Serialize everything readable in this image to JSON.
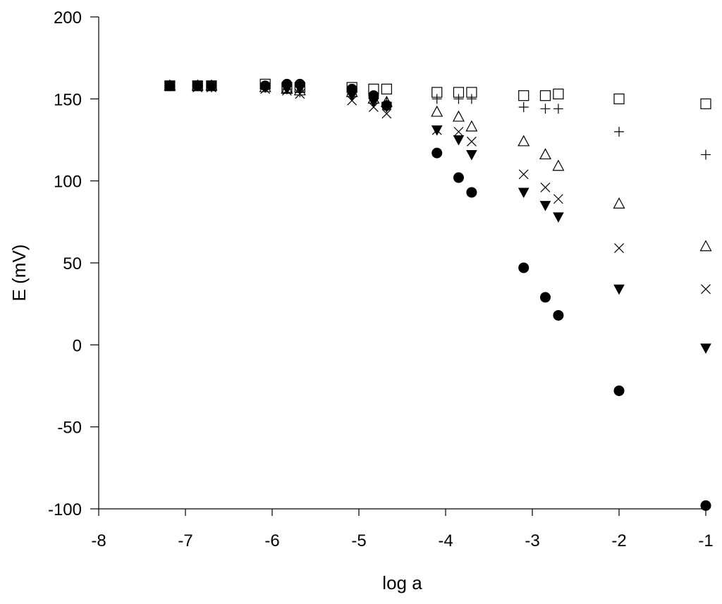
{
  "chart_data": {
    "type": "scatter",
    "xlabel": "log a",
    "ylabel": "E (mV)",
    "xlim": [
      -8,
      -1
    ],
    "ylim": [
      -100,
      200
    ],
    "xticks": [
      -8,
      -7,
      -6,
      -5,
      -4,
      -3,
      -2,
      -1
    ],
    "yticks": [
      -100,
      -50,
      0,
      50,
      100,
      150,
      200
    ],
    "xtick_labels": [
      "-8",
      "-7",
      "-6",
      "-5",
      "-4",
      "-3",
      "-2",
      "-1"
    ],
    "ytick_labels": [
      "-100",
      "-50",
      "0",
      "50",
      "100",
      "150",
      "200"
    ],
    "grid": false,
    "legend": "none",
    "series": [
      {
        "marker": "open-square",
        "color": "#000000",
        "points": [
          {
            "x": -7.18,
            "y": 158
          },
          {
            "x": -6.86,
            "y": 158
          },
          {
            "x": -6.7,
            "y": 158
          },
          {
            "x": -6.08,
            "y": 159
          },
          {
            "x": -5.83,
            "y": 157
          },
          {
            "x": -5.68,
            "y": 157
          },
          {
            "x": -5.08,
            "y": 157
          },
          {
            "x": -4.83,
            "y": 156
          },
          {
            "x": -4.68,
            "y": 156
          },
          {
            "x": -4.1,
            "y": 154
          },
          {
            "x": -3.85,
            "y": 154
          },
          {
            "x": -3.7,
            "y": 154
          },
          {
            "x": -3.1,
            "y": 152
          },
          {
            "x": -2.85,
            "y": 152
          },
          {
            "x": -2.7,
            "y": 153
          },
          {
            "x": -2.0,
            "y": 150
          },
          {
            "x": -1.0,
            "y": 147
          }
        ]
      },
      {
        "marker": "plus",
        "color": "#000000",
        "points": [
          {
            "x": -7.18,
            "y": 158
          },
          {
            "x": -6.86,
            "y": 158
          },
          {
            "x": -6.7,
            "y": 157
          },
          {
            "x": -6.08,
            "y": 157
          },
          {
            "x": -5.83,
            "y": 156
          },
          {
            "x": -5.68,
            "y": 154
          },
          {
            "x": -5.08,
            "y": 153
          },
          {
            "x": -4.83,
            "y": 150
          },
          {
            "x": -4.68,
            "y": 148
          },
          {
            "x": -4.1,
            "y": 150
          },
          {
            "x": -3.85,
            "y": 150
          },
          {
            "x": -3.7,
            "y": 150
          },
          {
            "x": -3.1,
            "y": 145
          },
          {
            "x": -2.85,
            "y": 144
          },
          {
            "x": -2.7,
            "y": 144
          },
          {
            "x": -2.0,
            "y": 130
          },
          {
            "x": -1.0,
            "y": 116
          }
        ]
      },
      {
        "marker": "open-triangle",
        "color": "#000000",
        "points": [
          {
            "x": -7.18,
            "y": 158
          },
          {
            "x": -6.86,
            "y": 158
          },
          {
            "x": -6.7,
            "y": 158
          },
          {
            "x": -6.08,
            "y": 157
          },
          {
            "x": -5.83,
            "y": 156
          },
          {
            "x": -5.68,
            "y": 155
          },
          {
            "x": -5.08,
            "y": 154
          },
          {
            "x": -4.83,
            "y": 150
          },
          {
            "x": -4.68,
            "y": 148
          },
          {
            "x": -4.1,
            "y": 142
          },
          {
            "x": -3.85,
            "y": 139
          },
          {
            "x": -3.7,
            "y": 133
          },
          {
            "x": -3.1,
            "y": 124
          },
          {
            "x": -2.85,
            "y": 116
          },
          {
            "x": -2.7,
            "y": 109
          },
          {
            "x": -2.0,
            "y": 86
          },
          {
            "x": -1.0,
            "y": 60
          }
        ]
      },
      {
        "marker": "cross",
        "color": "#000000",
        "points": [
          {
            "x": -7.18,
            "y": 158
          },
          {
            "x": -6.86,
            "y": 157
          },
          {
            "x": -6.7,
            "y": 157
          },
          {
            "x": -6.08,
            "y": 156
          },
          {
            "x": -5.83,
            "y": 155
          },
          {
            "x": -5.68,
            "y": 153
          },
          {
            "x": -5.08,
            "y": 149
          },
          {
            "x": -4.83,
            "y": 145
          },
          {
            "x": -4.68,
            "y": 141
          },
          {
            "x": -4.1,
            "y": 131
          },
          {
            "x": -3.85,
            "y": 130
          },
          {
            "x": -3.7,
            "y": 124
          },
          {
            "x": -3.1,
            "y": 104
          },
          {
            "x": -2.85,
            "y": 96
          },
          {
            "x": -2.7,
            "y": 89
          },
          {
            "x": -2.0,
            "y": 59
          },
          {
            "x": -1.0,
            "y": 34
          }
        ]
      },
      {
        "marker": "filled-down-triangle",
        "color": "#000000",
        "points": [
          {
            "x": -7.18,
            "y": 158
          },
          {
            "x": -6.86,
            "y": 158
          },
          {
            "x": -6.7,
            "y": 158
          },
          {
            "x": -6.08,
            "y": 157
          },
          {
            "x": -5.83,
            "y": 156
          },
          {
            "x": -5.68,
            "y": 156
          },
          {
            "x": -5.08,
            "y": 152
          },
          {
            "x": -4.83,
            "y": 148
          },
          {
            "x": -4.68,
            "y": 145
          },
          {
            "x": -4.1,
            "y": 131
          },
          {
            "x": -3.85,
            "y": 125
          },
          {
            "x": -3.7,
            "y": 116
          },
          {
            "x": -3.1,
            "y": 93
          },
          {
            "x": -2.85,
            "y": 85
          },
          {
            "x": -2.7,
            "y": 78
          },
          {
            "x": -2.0,
            "y": 34
          },
          {
            "x": -1.0,
            "y": -2
          }
        ]
      },
      {
        "marker": "filled-circle",
        "color": "#000000",
        "points": [
          {
            "x": -7.18,
            "y": 158
          },
          {
            "x": -6.86,
            "y": 158
          },
          {
            "x": -6.7,
            "y": 158
          },
          {
            "x": -6.08,
            "y": 158
          },
          {
            "x": -5.83,
            "y": 159
          },
          {
            "x": -5.68,
            "y": 159
          },
          {
            "x": -5.08,
            "y": 156
          },
          {
            "x": -4.83,
            "y": 152
          },
          {
            "x": -4.68,
            "y": 146
          },
          {
            "x": -4.1,
            "y": 117
          },
          {
            "x": -3.85,
            "y": 102
          },
          {
            "x": -3.7,
            "y": 93
          },
          {
            "x": -3.1,
            "y": 47
          },
          {
            "x": -2.85,
            "y": 29
          },
          {
            "x": -2.7,
            "y": 18
          },
          {
            "x": -2.0,
            "y": -28
          },
          {
            "x": -1.0,
            "y": -98
          }
        ]
      }
    ]
  }
}
